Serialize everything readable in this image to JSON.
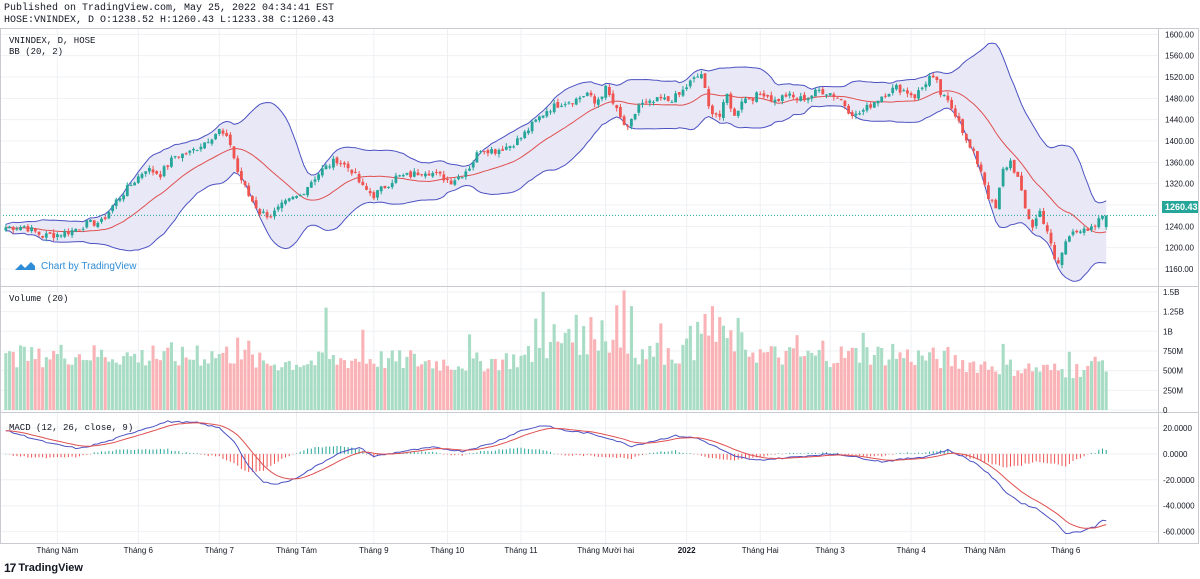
{
  "header": {
    "published": "Published on TradingView.com, May 25, 2022 04:34:41 EST",
    "ohlc": "HOSE:VNINDEX, D O:1238.52 H:1260.43 L:1233.38 C:1260.43"
  },
  "panes": {
    "main_title": "VNINDEX, D, HOSE",
    "bb_label": "BB (20, 2)",
    "volume_label": "Volume (20)",
    "macd_label": "MACD (12, 26, close, 9)"
  },
  "watermark": "Chart by TradingView",
  "price_tag": "1260.43",
  "footer": {
    "brand": "TradingView",
    "mark": "17"
  },
  "colors": {
    "up": "#26a69a",
    "down": "#ef5350",
    "vol_up": "#a8dcc5",
    "vol_down": "#f9b3b6",
    "bb_fill": "#e8e8f6",
    "bb_line": "#4c52c2",
    "basis": "#e05050",
    "macd": "#4c52c2",
    "signal": "#e05050",
    "grid": "#eef0f3",
    "tag": "#26a69a"
  },
  "chart_data": {
    "type": "candlestick",
    "title": "VNINDEX, D, HOSE",
    "price_axis": {
      "ylim": [
        1130,
        1610
      ],
      "ticks": [
        1160,
        1200,
        1240,
        1280,
        1320,
        1360,
        1400,
        1440,
        1480,
        1520,
        1560,
        1600
      ],
      "labels": [
        "1160.00",
        "1200.00",
        "1240.00",
        "1280.00",
        "1320.00",
        "1360.00",
        "1400.00",
        "1440.00",
        "1480.00",
        "1520.00",
        "1560.00",
        "1600.00"
      ]
    },
    "volume_axis": {
      "ylim": [
        0,
        1.55
      ],
      "ticks": [
        0,
        0.25,
        0.5,
        0.75,
        1,
        1.25,
        1.5
      ],
      "labels": [
        "0",
        "250M",
        "500M",
        "750M",
        "1B",
        "1.25B",
        "1.5B"
      ]
    },
    "macd_axis": {
      "ylim": [
        -68,
        30
      ],
      "ticks": [
        20,
        0,
        -20,
        -40,
        -60
      ],
      "labels": [
        "20.0000",
        "0.0000",
        "-20.0000",
        "-40.0000",
        "-60.0000"
      ]
    },
    "x_axis": {
      "labels": [
        "Tháng Năm",
        "Tháng 6",
        "Tháng 7",
        "Tháng Tám",
        "Tháng 9",
        "Tháng 10",
        "Tháng 11",
        "Tháng Mười hai",
        "2022",
        "Tháng Hai",
        "Tháng 3",
        "Tháng 4",
        "Tháng Năm",
        "Tháng 6"
      ],
      "label_bars": [
        14,
        36,
        58,
        79,
        100,
        120,
        140,
        163,
        185,
        205,
        224,
        246,
        266,
        288
      ],
      "bold_index": 8
    },
    "last_close": 1260.43,
    "close_anchors": [
      [
        0,
        1238
      ],
      [
        5,
        1240
      ],
      [
        10,
        1222
      ],
      [
        14,
        1225
      ],
      [
        18,
        1232
      ],
      [
        22,
        1245
      ],
      [
        26,
        1248
      ],
      [
        30,
        1288
      ],
      [
        34,
        1318
      ],
      [
        38,
        1348
      ],
      [
        42,
        1338
      ],
      [
        46,
        1372
      ],
      [
        50,
        1378
      ],
      [
        54,
        1398
      ],
      [
        58,
        1420
      ],
      [
        61,
        1395
      ],
      [
        63,
        1342
      ],
      [
        66,
        1298
      ],
      [
        69,
        1266
      ],
      [
        72,
        1260
      ],
      [
        75,
        1278
      ],
      [
        78,
        1292
      ],
      [
        80,
        1298
      ],
      [
        83,
        1325
      ],
      [
        86,
        1346
      ],
      [
        90,
        1365
      ],
      [
        94,
        1345
      ],
      [
        97,
        1312
      ],
      [
        100,
        1298
      ],
      [
        103,
        1315
      ],
      [
        106,
        1332
      ],
      [
        110,
        1336
      ],
      [
        114,
        1345
      ],
      [
        118,
        1334
      ],
      [
        121,
        1325
      ],
      [
        124,
        1338
      ],
      [
        126,
        1352
      ],
      [
        129,
        1386
      ],
      [
        133,
        1382
      ],
      [
        137,
        1392
      ],
      [
        140,
        1406
      ],
      [
        143,
        1430
      ],
      [
        147,
        1458
      ],
      [
        151,
        1472
      ],
      [
        155,
        1478
      ],
      [
        158,
        1490
      ],
      [
        160,
        1470
      ],
      [
        163,
        1498
      ],
      [
        165,
        1470
      ],
      [
        167,
        1442
      ],
      [
        169,
        1420
      ],
      [
        172,
        1468
      ],
      [
        175,
        1470
      ],
      [
        178,
        1478
      ],
      [
        180,
        1476
      ],
      [
        183,
        1486
      ],
      [
        186,
        1510
      ],
      [
        189,
        1526
      ],
      [
        191,
        1462
      ],
      [
        194,
        1446
      ],
      [
        196,
        1486
      ],
      [
        198,
        1445
      ],
      [
        200,
        1478
      ],
      [
        203,
        1482
      ],
      [
        206,
        1490
      ],
      [
        209,
        1475
      ],
      [
        212,
        1486
      ],
      [
        215,
        1478
      ],
      [
        218,
        1482
      ],
      [
        221,
        1495
      ],
      [
        224,
        1490
      ],
      [
        227,
        1478
      ],
      [
        229,
        1458
      ],
      [
        231,
        1448
      ],
      [
        234,
        1462
      ],
      [
        236,
        1474
      ],
      [
        239,
        1490
      ],
      [
        242,
        1500
      ],
      [
        245,
        1492
      ],
      [
        247,
        1484
      ],
      [
        249,
        1500
      ],
      [
        251,
        1520
      ],
      [
        253,
        1508
      ],
      [
        254,
        1488
      ],
      [
        256,
        1472
      ],
      [
        259,
        1442
      ],
      [
        261,
        1398
      ],
      [
        263,
        1375
      ],
      [
        265,
        1345
      ],
      [
        267,
        1296
      ],
      [
        269,
        1272
      ],
      [
        271,
        1345
      ],
      [
        273,
        1362
      ],
      [
        275,
        1330
      ],
      [
        277,
        1272
      ],
      [
        279,
        1240
      ],
      [
        281,
        1268
      ],
      [
        283,
        1232
      ],
      [
        285,
        1175
      ],
      [
        286,
        1170
      ],
      [
        288,
        1210
      ],
      [
        290,
        1236
      ],
      [
        292,
        1232
      ],
      [
        294,
        1228
      ],
      [
        296,
        1240
      ],
      [
        298,
        1260.43
      ]
    ],
    "volume_anchors": [
      [
        0,
        0.65
      ],
      [
        15,
        0.72
      ],
      [
        30,
        0.7
      ],
      [
        45,
        0.66
      ],
      [
        60,
        0.72
      ],
      [
        70,
        0.6
      ],
      [
        85,
        0.62
      ],
      [
        98,
        0.66
      ],
      [
        112,
        0.62
      ],
      [
        125,
        0.6
      ],
      [
        140,
        0.66
      ],
      [
        152,
        0.88
      ],
      [
        162,
        0.9
      ],
      [
        172,
        0.74
      ],
      [
        182,
        0.72
      ],
      [
        196,
        0.92
      ],
      [
        205,
        0.72
      ],
      [
        215,
        0.68
      ],
      [
        235,
        0.72
      ],
      [
        250,
        0.68
      ],
      [
        262,
        0.6
      ],
      [
        270,
        0.56
      ],
      [
        282,
        0.52
      ],
      [
        290,
        0.5
      ],
      [
        298,
        0.62
      ]
    ],
    "volume_spikes": [
      [
        4,
        0.82
      ],
      [
        9,
        0.78
      ],
      [
        40,
        0.82
      ],
      [
        45,
        0.86
      ],
      [
        52,
        0.82
      ],
      [
        63,
        0.92
      ],
      [
        66,
        0.88
      ],
      [
        87,
        1.3
      ],
      [
        97,
        1.02
      ],
      [
        110,
        0.76
      ],
      [
        126,
        0.96
      ],
      [
        144,
        1.16
      ],
      [
        146,
        1.5
      ],
      [
        149,
        1.09
      ],
      [
        153,
        1.03
      ],
      [
        155,
        1.21
      ],
      [
        159,
        1.18
      ],
      [
        162,
        1.14
      ],
      [
        166,
        1.33
      ],
      [
        168,
        1.52
      ],
      [
        170,
        1.32
      ],
      [
        178,
        1.1
      ],
      [
        186,
        1.07
      ],
      [
        188,
        1.12
      ],
      [
        190,
        1.22
      ],
      [
        192,
        1.32
      ],
      [
        194,
        1.18
      ],
      [
        199,
        1.17
      ],
      [
        215,
        0.95
      ],
      [
        222,
        0.88
      ],
      [
        233,
        0.98
      ],
      [
        241,
        0.84
      ],
      [
        256,
        0.8
      ],
      [
        271,
        0.84
      ],
      [
        289,
        0.74
      ]
    ],
    "macd_anchors": [
      [
        0,
        18
      ],
      [
        12,
        8
      ],
      [
        20,
        4
      ],
      [
        28,
        10
      ],
      [
        36,
        18
      ],
      [
        44,
        25
      ],
      [
        52,
        24
      ],
      [
        58,
        20
      ],
      [
        62,
        10
      ],
      [
        66,
        -10
      ],
      [
        70,
        -22
      ],
      [
        74,
        -23
      ],
      [
        78,
        -20
      ],
      [
        84,
        -10
      ],
      [
        90,
        0
      ],
      [
        96,
        5
      ],
      [
        100,
        -2
      ],
      [
        108,
        2
      ],
      [
        116,
        5
      ],
      [
        124,
        2
      ],
      [
        132,
        8
      ],
      [
        140,
        18
      ],
      [
        146,
        22
      ],
      [
        152,
        18
      ],
      [
        158,
        16
      ],
      [
        164,
        12
      ],
      [
        170,
        6
      ],
      [
        176,
        10
      ],
      [
        182,
        14
      ],
      [
        188,
        12
      ],
      [
        194,
        4
      ],
      [
        198,
        -2
      ],
      [
        204,
        -5
      ],
      [
        212,
        -3
      ],
      [
        220,
        -1
      ],
      [
        226,
        0
      ],
      [
        232,
        -3
      ],
      [
        238,
        -6
      ],
      [
        244,
        -4
      ],
      [
        250,
        -2
      ],
      [
        256,
        3
      ],
      [
        260,
        -2
      ],
      [
        264,
        -8
      ],
      [
        268,
        -18
      ],
      [
        272,
        -30
      ],
      [
        276,
        -38
      ],
      [
        280,
        -42
      ],
      [
        284,
        -50
      ],
      [
        288,
        -61
      ],
      [
        292,
        -60
      ],
      [
        296,
        -56
      ],
      [
        298,
        -51
      ]
    ]
  }
}
